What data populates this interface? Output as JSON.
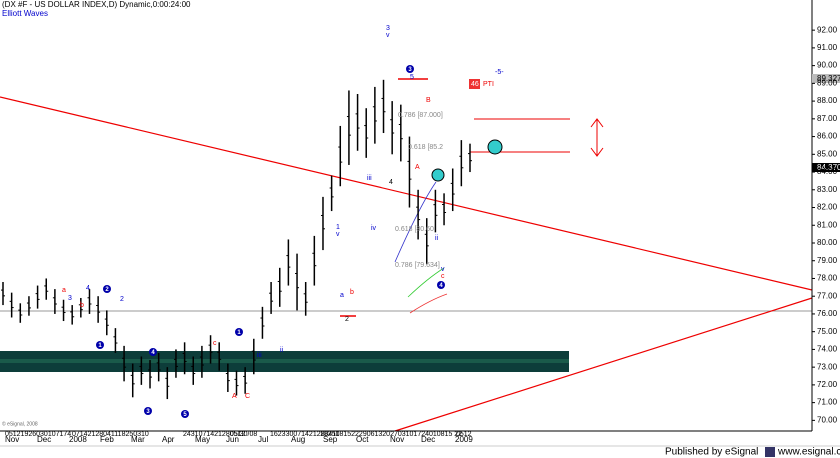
{
  "chart_data": {
    "type": "ohlc",
    "title": "(DX #F - US DOLLAR INDEX,D) Dynamic,0:00:24:00",
    "subtitle": "Elliott Waves",
    "ylim": [
      69.4,
      93.7
    ],
    "yticks": [
      {
        "value": 70,
        "label": "70.00"
      },
      {
        "value": 71,
        "label": "71.00"
      },
      {
        "value": 72,
        "label": "72.00"
      },
      {
        "value": 73,
        "label": "73.00"
      },
      {
        "value": 74,
        "label": "74.00"
      },
      {
        "value": 75,
        "label": "75.00"
      },
      {
        "value": 76,
        "label": "76.00"
      },
      {
        "value": 77,
        "label": "77.00"
      },
      {
        "value": 78,
        "label": "78.00"
      },
      {
        "value": 79,
        "label": "79.00"
      },
      {
        "value": 80,
        "label": "80.00"
      },
      {
        "value": 81,
        "label": "81.00"
      },
      {
        "value": 82,
        "label": "82.00"
      },
      {
        "value": 83,
        "label": "83.00"
      },
      {
        "value": 84,
        "label": "84.00"
      },
      {
        "value": 85,
        "label": "85.00"
      },
      {
        "value": 86,
        "label": "86.00"
      },
      {
        "value": 87,
        "label": "87.00"
      },
      {
        "value": 88,
        "label": "88.00"
      },
      {
        "value": 89,
        "label": "89.00"
      },
      {
        "value": 90,
        "label": "90.00"
      },
      {
        "value": 91,
        "label": "91.00"
      },
      {
        "value": 92,
        "label": "92.00"
      }
    ],
    "months": [
      "Nov",
      "Dec",
      "2008",
      "Feb",
      "Mar",
      "Apr",
      "May",
      "Jun",
      "Jul",
      "Aug",
      "Sep",
      "Oct",
      "Nov",
      "Dec",
      "2009"
    ],
    "day_labels": [
      "05121926030107174",
      "07142128041118250310",
      "2431071421280512",
      "05/30/08",
      "162330071421280411",
      "1825081522290613202703101724010815 22",
      "0512"
    ],
    "color": "#000000",
    "lows": [
      76.5,
      75.8,
      75.5,
      75.9,
      76.3,
      76.8,
      76.0,
      75.6,
      75.4,
      75.8,
      76.0,
      75.5,
      74.8,
      73.8,
      72.2,
      71.3,
      72.0,
      71.8,
      72.2,
      71.2,
      72.4,
      72.6,
      72.0,
      72.4,
      73.2,
      72.8,
      71.6,
      71.4,
      71.5,
      72.6,
      74.6,
      76.0,
      76.4,
      77.6,
      76.2,
      75.9,
      77.6,
      79.6,
      81.8,
      83.2,
      84.4,
      85.2,
      84.8,
      85.6,
      86.2,
      85.0,
      84.6,
      82.0,
      80.2,
      78.8,
      80.6,
      81.0,
      81.8,
      83.2,
      84.0
    ],
    "highs": [
      77.8,
      77.2,
      76.6,
      77.0,
      77.6,
      78.0,
      77.4,
      76.8,
      76.5,
      76.9,
      77.4,
      77.0,
      76.2,
      75.2,
      74.2,
      73.2,
      73.6,
      73.4,
      73.8,
      73.0,
      74.0,
      74.4,
      73.6,
      74.2,
      74.8,
      74.4,
      73.2,
      72.8,
      73.0,
      74.6,
      76.4,
      77.8,
      78.6,
      80.2,
      79.4,
      77.8,
      80.4,
      82.6,
      83.8,
      86.6,
      88.6,
      88.4,
      87.6,
      88.8,
      89.2,
      88.0,
      87.8,
      86.0,
      83.0,
      81.4,
      83.0,
      82.8,
      84.2,
      85.8,
      85.6
    ],
    "price_labels": [
      "89.327",
      "84.370"
    ],
    "annotations": [
      "-5-",
      "46",
      "PTI",
      "3",
      "v",
      "5",
      "4",
      "B",
      "A",
      "iii",
      "iv",
      "1",
      "v",
      "2",
      "ii",
      "c",
      "v",
      "0.786 [87.000]",
      "0.618 [85.2",
      "0.618 [80.60",
      "0.786 [79.634]",
      "3",
      "a",
      "b",
      "4",
      "c",
      "2",
      "A",
      "C",
      "iii",
      "ii",
      "a",
      "b"
    ],
    "circled": [
      "3",
      "4",
      "1",
      "2",
      "1",
      "4",
      "3",
      "5"
    ],
    "copyright": "© eSignal, 2008",
    "footer": "Published by eSignal",
    "footer_url": "www.esignal.com"
  }
}
